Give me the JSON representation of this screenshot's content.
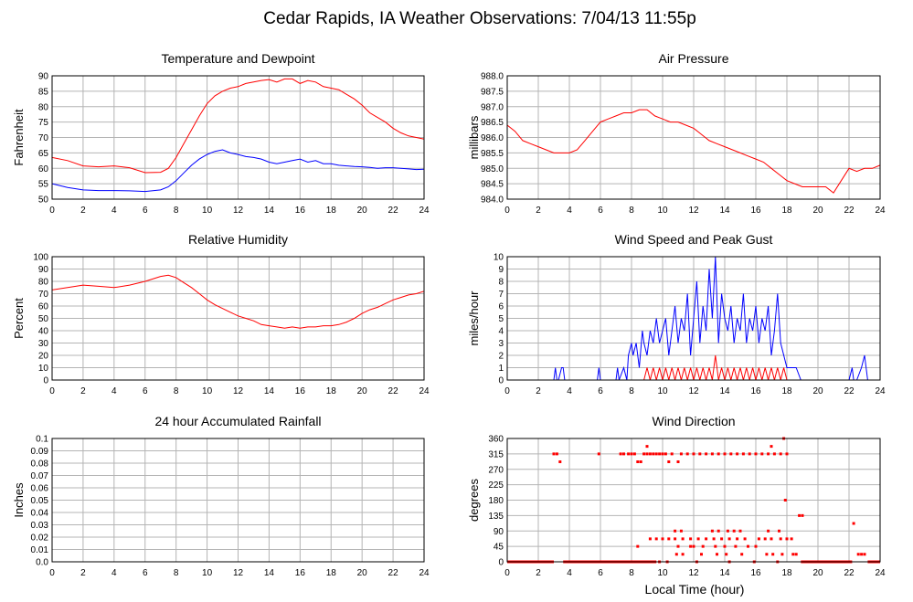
{
  "title": "Cedar Rapids, IA Weather Observations: 7/04/13 11:55p",
  "xlabel": "Local Time (hour)",
  "colors": {
    "red": "#ff0000",
    "blue": "#0000ff"
  },
  "chart_data": [
    {
      "id": "temp",
      "type": "line",
      "title": "Temperature and Dewpoint",
      "ylabel": "Fahrenheit",
      "xlim": [
        0,
        24
      ],
      "ylim": [
        50,
        90
      ],
      "yticks": [
        "50",
        "55",
        "60",
        "65",
        "70",
        "75",
        "80",
        "85",
        "90"
      ],
      "xticks": [
        "0",
        "2",
        "4",
        "6",
        "8",
        "10",
        "12",
        "14",
        "16",
        "18",
        "20",
        "22",
        "24"
      ],
      "x": [
        0,
        1,
        2,
        3,
        4,
        5,
        6,
        7,
        7.5,
        8,
        8.5,
        9,
        9.5,
        10,
        10.5,
        11,
        11.5,
        12,
        12.5,
        13,
        13.5,
        14,
        14.5,
        15,
        15.5,
        16,
        16.5,
        17,
        17.5,
        18,
        18.5,
        19,
        19.5,
        20,
        20.5,
        21,
        21.5,
        22,
        22.5,
        23,
        23.5,
        24
      ],
      "series": [
        {
          "color": "#ff0000",
          "values": [
            63.5,
            62.5,
            60.8,
            60.5,
            60.8,
            60.2,
            58.6,
            58.7,
            60,
            63.5,
            68,
            72.5,
            77,
            81,
            83.5,
            85,
            86,
            86.5,
            87.5,
            88,
            88.5,
            88.8,
            88,
            89,
            89,
            87.5,
            88.5,
            88,
            86.5,
            86,
            85.5,
            84,
            82.5,
            80.5,
            78,
            76.5,
            75,
            73,
            71.5,
            70.5,
            70,
            69.5
          ]
        },
        {
          "color": "#0000ff",
          "values": [
            55,
            53.8,
            53,
            52.8,
            52.8,
            52.7,
            52.5,
            53,
            54,
            56,
            58.5,
            61,
            63,
            64.5,
            65.5,
            66,
            65,
            64.5,
            63.8,
            63.5,
            63,
            62,
            61.5,
            62,
            62.5,
            63,
            62,
            62.5,
            61.5,
            61.5,
            61,
            60.8,
            60.6,
            60.5,
            60.3,
            60,
            60.2,
            60.2,
            60,
            59.8,
            59.6,
            59.7
          ]
        }
      ]
    },
    {
      "id": "pressure",
      "type": "line",
      "title": "Air Pressure",
      "ylabel": "millibars",
      "xlim": [
        0,
        24
      ],
      "ylim": [
        984.0,
        988.0
      ],
      "yticks": [
        "984.0",
        "984.5",
        "985.0",
        "985.5",
        "986.0",
        "986.5",
        "987.0",
        "987.5",
        "988.0"
      ],
      "xticks": [
        "0",
        "2",
        "4",
        "6",
        "8",
        "10",
        "12",
        "14",
        "16",
        "18",
        "20",
        "22",
        "24"
      ],
      "x": [
        0,
        0.5,
        1,
        1.5,
        2,
        2.5,
        3,
        3.5,
        4,
        4.5,
        5,
        5.5,
        6,
        6.5,
        7,
        7.5,
        8,
        8.5,
        9,
        9.5,
        10,
        10.5,
        11,
        11.5,
        12,
        12.5,
        13,
        13.5,
        14,
        14.5,
        15,
        15.5,
        16,
        16.5,
        17,
        17.5,
        18,
        18.5,
        19,
        19.5,
        20,
        20.5,
        21,
        21.5,
        22,
        22.5,
        23,
        23.5,
        24
      ],
      "series": [
        {
          "color": "#ff0000",
          "values": [
            986.4,
            986.2,
            985.9,
            985.8,
            985.7,
            985.6,
            985.5,
            985.5,
            985.5,
            985.6,
            985.9,
            986.2,
            986.5,
            986.6,
            986.7,
            986.8,
            986.8,
            986.9,
            986.9,
            986.7,
            986.6,
            986.5,
            986.5,
            986.4,
            986.3,
            986.1,
            985.9,
            985.8,
            985.7,
            985.6,
            985.5,
            985.4,
            985.3,
            985.2,
            985.0,
            984.8,
            984.6,
            984.5,
            984.4,
            984.4,
            984.4,
            984.4,
            984.2,
            984.6,
            985.0,
            984.9,
            985.0,
            985.0,
            985.1
          ]
        }
      ]
    },
    {
      "id": "humidity",
      "type": "line",
      "title": "Relative Humidity",
      "ylabel": "Percent",
      "xlim": [
        0,
        24
      ],
      "ylim": [
        0,
        100
      ],
      "yticks": [
        "0",
        "10",
        "20",
        "30",
        "40",
        "50",
        "60",
        "70",
        "80",
        "90",
        "100"
      ],
      "xticks": [
        "0",
        "2",
        "4",
        "6",
        "8",
        "10",
        "12",
        "14",
        "16",
        "18",
        "20",
        "22",
        "24"
      ],
      "x": [
        0,
        1,
        2,
        3,
        4,
        5,
        6,
        7,
        7.5,
        8,
        8.5,
        9,
        9.5,
        10,
        10.5,
        11,
        11.5,
        12,
        12.5,
        13,
        13.5,
        14,
        14.5,
        15,
        15.5,
        16,
        16.5,
        17,
        17.5,
        18,
        18.5,
        19,
        19.5,
        20,
        20.5,
        21,
        21.5,
        22,
        22.5,
        23,
        23.5,
        24
      ],
      "series": [
        {
          "color": "#ff0000",
          "values": [
            73,
            75,
            77,
            76,
            75,
            77,
            80,
            84,
            85,
            83,
            79,
            75,
            70,
            65,
            61,
            58,
            55,
            52,
            50,
            48,
            45,
            44,
            43,
            42,
            43,
            42,
            43,
            43,
            44,
            44,
            45,
            47,
            50,
            54,
            57,
            59,
            62,
            65,
            67,
            69,
            70,
            72
          ]
        }
      ]
    },
    {
      "id": "wind",
      "type": "line",
      "title": "Wind Speed and Peak Gust",
      "ylabel": "miles/hour",
      "xlim": [
        0,
        24
      ],
      "ylim": [
        0,
        10
      ],
      "yticks": [
        "0",
        "1",
        "2",
        "3",
        "4",
        "5",
        "6",
        "7",
        "8",
        "9",
        "10"
      ],
      "xticks": [
        "0",
        "2",
        "4",
        "6",
        "8",
        "10",
        "12",
        "14",
        "16",
        "18",
        "20",
        "22",
        "24"
      ],
      "x": [
        0,
        3,
        3.1,
        3.2,
        3.3,
        3.5,
        3.6,
        3.7,
        3.8,
        5.8,
        5.9,
        6.0,
        7.0,
        7.1,
        7.2,
        7.5,
        7.7,
        7.8,
        8.0,
        8.1,
        8.3,
        8.5,
        8.7,
        8.8,
        9.0,
        9.2,
        9.4,
        9.6,
        9.8,
        10.0,
        10.2,
        10.4,
        10.6,
        10.8,
        11.0,
        11.2,
        11.4,
        11.6,
        11.8,
        12.0,
        12.2,
        12.4,
        12.6,
        12.8,
        13.0,
        13.2,
        13.4,
        13.6,
        13.8,
        14.0,
        14.2,
        14.4,
        14.6,
        14.8,
        15.0,
        15.2,
        15.4,
        15.6,
        15.8,
        16.0,
        16.2,
        16.4,
        16.6,
        16.8,
        17.0,
        17.2,
        17.4,
        17.6,
        17.8,
        18.0,
        18.3,
        18.6,
        18.9,
        19.1,
        19.3,
        22,
        22.2,
        22.3,
        22.5,
        22.8,
        23.0,
        23.2,
        24
      ],
      "series": [
        {
          "color": "#0000ff",
          "values": [
            0,
            0,
            1,
            0,
            0,
            1,
            1,
            0,
            0,
            0,
            1,
            0,
            0,
            1,
            0,
            1,
            0,
            2,
            3,
            2,
            3,
            1,
            4,
            3,
            2,
            4,
            3,
            5,
            3,
            4,
            5,
            2,
            4,
            6,
            3,
            5,
            4,
            7,
            2,
            5,
            8,
            3,
            6,
            4,
            9,
            5,
            10,
            3,
            7,
            5,
            4,
            6,
            3,
            5,
            4,
            7,
            3,
            5,
            4,
            6,
            3,
            5,
            4,
            6,
            2,
            4,
            7,
            3,
            2,
            1,
            1,
            1,
            0,
            0,
            0,
            0,
            1,
            0,
            0,
            1,
            2,
            0,
            0
          ]
        },
        {
          "color": "#ff0000",
          "values": [
            0,
            0,
            0,
            0,
            0,
            0,
            0,
            0,
            0,
            0,
            0,
            0,
            0,
            0,
            0,
            0,
            0,
            0,
            0,
            0,
            0,
            0,
            0,
            0,
            1,
            0,
            1,
            0,
            1,
            0,
            1,
            0,
            1,
            0,
            1,
            0,
            1,
            0,
            1,
            0,
            1,
            0,
            1,
            0,
            1,
            0,
            2,
            0,
            1,
            0,
            1,
            0,
            1,
            0,
            1,
            0,
            1,
            0,
            1,
            0,
            1,
            0,
            1,
            0,
            1,
            0,
            1,
            0,
            1,
            0,
            0,
            0,
            0,
            0,
            0,
            0,
            0,
            0,
            0,
            0,
            0,
            0,
            0
          ]
        }
      ]
    },
    {
      "id": "rain",
      "type": "line",
      "title": "24 hour Accumulated Rainfall",
      "ylabel": "Inches",
      "xlim": [
        0,
        24
      ],
      "ylim": [
        0.0,
        0.1
      ],
      "yticks": [
        "0.0",
        "0.01",
        "0.02",
        "0.03",
        "0.04",
        "0.05",
        "0.06",
        "0.07",
        "0.08",
        "0.09",
        "0.1"
      ],
      "xticks": [
        "0",
        "2",
        "4",
        "6",
        "8",
        "10",
        "12",
        "14",
        "16",
        "18",
        "20",
        "22",
        "24"
      ],
      "x": [
        0,
        24
      ],
      "series": [
        {
          "color": "#ff0000",
          "values": [
            0,
            0
          ]
        }
      ]
    },
    {
      "id": "direction",
      "type": "scatter",
      "title": "Wind Direction",
      "ylabel": "degrees",
      "xlim": [
        0,
        24
      ],
      "ylim": [
        0,
        360
      ],
      "yticks": [
        "0",
        "45",
        "90",
        "135",
        "180",
        "225",
        "270",
        "315",
        "360"
      ],
      "xticks": [
        "0",
        "2",
        "4",
        "6",
        "8",
        "10",
        "12",
        "14",
        "16",
        "18",
        "20",
        "22",
        "24"
      ],
      "x": [
        3.0,
        3.2,
        3.4,
        5.9,
        7.3,
        7.5,
        7.8,
        8.0,
        8.2,
        8.4,
        8.6,
        8.8,
        9.0,
        9.2,
        9.4,
        9.6,
        9.8,
        10.0,
        10.2,
        10.4,
        10.6,
        11.0,
        11.2,
        11.6,
        12.0,
        12.4,
        12.8,
        13.2,
        13.6,
        14.0,
        14.4,
        14.8,
        15.2,
        15.6,
        16.0,
        16.4,
        16.8,
        17.2,
        17.6,
        18.0,
        9.2,
        9.6,
        10.0,
        10.4,
        10.8,
        11.3,
        11.8,
        12.3,
        12.8,
        13.3,
        13.8,
        14.3,
        14.8,
        15.3,
        16.2,
        16.6,
        17.0,
        17.6,
        18.0,
        18.3,
        13.6,
        14.6,
        15.0,
        16.8,
        17.5,
        10.8,
        11.2,
        13.2,
        14.2,
        11.0,
        12.0,
        13.4,
        14.0,
        8.4,
        10.9,
        11.3,
        12.5,
        13.5,
        14.1,
        15.1,
        16.7,
        17.1,
        17.7,
        18.4,
        18.6,
        11.8,
        12.6,
        14.7,
        15.5,
        16.0,
        17.9,
        18.8,
        19.0,
        22.3,
        22.6,
        22.8,
        23.0,
        8.0,
        8.6,
        8.8,
        9.3,
        9.8,
        10.3,
        12.2,
        14.3,
        15.9,
        17.4,
        9.0,
        17.0,
        17.8
      ],
      "series": [
        {
          "color": "#ff0000",
          "values": [
            315,
            315,
            292,
            315,
            315,
            315,
            315,
            315,
            315,
            292,
            292,
            315,
            315,
            315,
            315,
            315,
            315,
            315,
            315,
            292,
            315,
            292,
            315,
            315,
            315,
            315,
            315,
            315,
            315,
            315,
            315,
            315,
            315,
            315,
            315,
            315,
            315,
            315,
            315,
            315,
            67,
            67,
            67,
            67,
            67,
            67,
            67,
            67,
            67,
            67,
            67,
            67,
            67,
            67,
            67,
            67,
            67,
            67,
            67,
            67,
            90,
            90,
            90,
            90,
            90,
            90,
            90,
            90,
            90,
            45,
            45,
            45,
            45,
            45,
            22,
            22,
            22,
            22,
            22,
            22,
            22,
            22,
            22,
            22,
            22,
            45,
            45,
            45,
            45,
            45,
            180,
            135,
            135,
            112,
            22,
            22,
            22,
            0,
            0,
            0,
            0,
            0,
            0,
            0,
            0,
            0,
            0,
            337,
            337,
            360
          ]
        }
      ],
      "baseline_zero_segments": [
        [
          0,
          3.0
        ],
        [
          3.6,
          9.6
        ],
        [
          18.9,
          22.2
        ],
        [
          23.2,
          24
        ]
      ]
    }
  ]
}
